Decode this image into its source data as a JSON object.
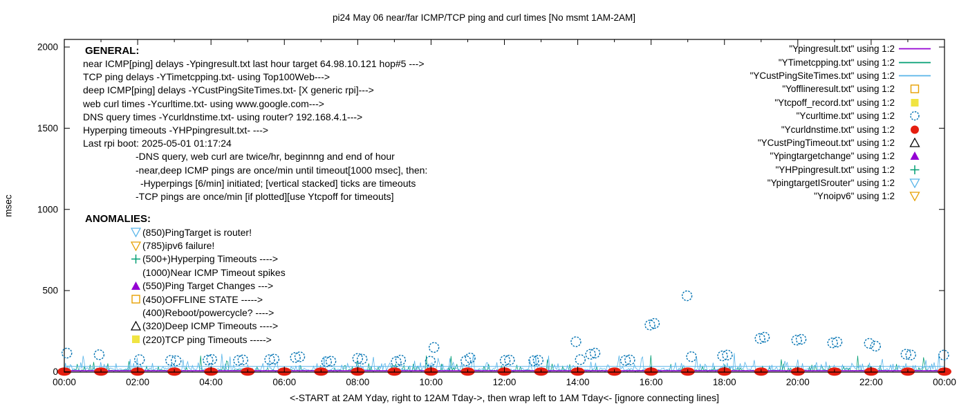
{
  "chart_data": {
    "type": "line",
    "title": "pi24 May 06  near/far ICMP/TCP ping and curl times [No msmt 1AM-2AM]",
    "ylabel": "msec",
    "xlabel": "<-START at 2AM Yday, right to 12AM Tday->, then wrap left to 1AM Tday<- [ignore connecting lines]",
    "ylim": [
      0,
      2000
    ],
    "xlim_hours": [
      0,
      24
    ],
    "y_ticks": [
      0,
      500,
      1000,
      1500,
      2000
    ],
    "x_tick_labels": [
      "00:00",
      "02:00",
      "04:00",
      "06:00",
      "08:00",
      "10:00",
      "12:00",
      "14:00",
      "16:00",
      "18:00",
      "20:00",
      "22:00",
      "00:00"
    ],
    "grid": "off",
    "legend_position": "inside-top-right",
    "noise_seed": 1337,
    "series": [
      {
        "name": "\"Ypingresult.txt\" using 1:2",
        "style": "line",
        "color": "#9400d3",
        "steady_msec": 6
      },
      {
        "name": "\"YTimetcpping.txt\" using 1:2",
        "style": "line",
        "color": "#009e73",
        "noise": {
          "base": [
            2,
            13
          ],
          "spikes": [
            [
              0.09,
              22,
              52
            ],
            [
              0.012,
              55,
              105
            ]
          ]
        }
      },
      {
        "name": "\"YCustPingSiteTimes.txt\" using 1:2",
        "style": "line",
        "color": "#56b4e9",
        "steady_msec": 33,
        "noise": {
          "base": [
            5,
            24
          ],
          "spikes": [
            [
              0.18,
              28,
              60
            ],
            [
              0.035,
              60,
              100
            ],
            [
              0.004,
              100,
              125
            ]
          ]
        }
      },
      {
        "name": "\"Yofflineresult.txt\" using 1:2",
        "style": "open-square",
        "color": "#e69f00",
        "points": []
      },
      {
        "name": "\"Ytcpoff_record.txt\" using 1:2",
        "style": "filled-square",
        "color": "#f0e442",
        "points": []
      },
      {
        "name": "\"Ycurltime.txt\" using 1:2",
        "style": "open-circle",
        "color": "#0072b2",
        "points": [
          [
            0.07,
            115
          ],
          [
            0.95,
            105
          ],
          [
            2.05,
            75
          ],
          [
            2.9,
            70
          ],
          [
            3.05,
            68
          ],
          [
            3.92,
            72
          ],
          [
            4.02,
            76
          ],
          [
            4.75,
            70
          ],
          [
            4.87,
            73
          ],
          [
            5.6,
            75
          ],
          [
            5.72,
            78
          ],
          [
            6.3,
            88
          ],
          [
            6.42,
            92
          ],
          [
            7.15,
            62
          ],
          [
            7.27,
            65
          ],
          [
            8.0,
            82
          ],
          [
            8.12,
            78
          ],
          [
            9.05,
            62
          ],
          [
            9.17,
            72
          ],
          [
            9.98,
            65
          ],
          [
            10.08,
            150
          ],
          [
            10.95,
            68
          ],
          [
            11.07,
            85
          ],
          [
            12.02,
            70
          ],
          [
            12.14,
            72
          ],
          [
            12.8,
            68
          ],
          [
            12.92,
            71
          ],
          [
            13.95,
            185
          ],
          [
            14.07,
            75
          ],
          [
            14.35,
            108
          ],
          [
            14.47,
            115
          ],
          [
            15.3,
            70
          ],
          [
            15.42,
            73
          ],
          [
            15.97,
            288
          ],
          [
            16.09,
            298
          ],
          [
            16.98,
            468
          ],
          [
            17.1,
            93
          ],
          [
            17.95,
            98
          ],
          [
            18.08,
            103
          ],
          [
            18.97,
            205
          ],
          [
            19.09,
            213
          ],
          [
            19.97,
            195
          ],
          [
            20.09,
            200
          ],
          [
            20.95,
            178
          ],
          [
            21.07,
            183
          ],
          [
            21.95,
            175
          ],
          [
            22.12,
            158
          ],
          [
            22.95,
            108
          ],
          [
            23.08,
            104
          ],
          [
            23.98,
            103
          ]
        ]
      },
      {
        "name": "\"Ycurldnstime.txt\" using 1:2",
        "style": "filled-circle",
        "color": "#e51e10",
        "blob": true,
        "points": [
          [
            0,
            1
          ],
          [
            1,
            1
          ],
          [
            2,
            1
          ],
          [
            3,
            1
          ],
          [
            4,
            1
          ],
          [
            5,
            1
          ],
          [
            6,
            1
          ],
          [
            7,
            1
          ],
          [
            8,
            1
          ],
          [
            9,
            1
          ],
          [
            10,
            1
          ],
          [
            11,
            1
          ],
          [
            12,
            1
          ],
          [
            13,
            1
          ],
          [
            14,
            1
          ],
          [
            15,
            1
          ],
          [
            16,
            1
          ],
          [
            17,
            1
          ],
          [
            18,
            1
          ],
          [
            19,
            1
          ],
          [
            20,
            1
          ],
          [
            21,
            1
          ],
          [
            22,
            1
          ],
          [
            23,
            1
          ],
          [
            24,
            1
          ]
        ]
      },
      {
        "name": "\"YCustPingTimeout.txt\" using 1:2",
        "style": "open-triangle-up",
        "color": "#000000",
        "points": []
      },
      {
        "name": "\"Ypingtargetchange\" using 1:2",
        "style": "filled-triangle-up",
        "color": "#9400d3",
        "points": []
      },
      {
        "name": "\"YHPpingresult.txt\" using 1:2",
        "style": "plus",
        "color": "#009e73",
        "points": []
      },
      {
        "name": "\"YpingtargetISrouter\" using 1:2",
        "style": "open-triangle-down",
        "color": "#56b4e9",
        "points": []
      },
      {
        "name": "\"Ynoipv6\" using 1:2",
        "style": "open-triangle-down",
        "color": "#e69f00",
        "points": []
      }
    ]
  },
  "annotations": {
    "general": {
      "heading": "GENERAL:",
      "lines": [
        {
          "text": "near ICMP[ping] delays -Ypingresult.txt last hour target 64.98.10.121 hop#5 --->",
          "indent": 0
        },
        {
          "text": "TCP ping delays -YTimetcpping.txt- using Top100Web--->",
          "indent": 0
        },
        {
          "text": "deep ICMP[ping] delays -YCustPingSiteTimes.txt- [X generic rpi]--->",
          "indent": 0
        },
        {
          "text": "web curl times -Ycurltime.txt- using www.google.com--->",
          "indent": 0
        },
        {
          "text": "DNS query times -Ycurldnstime.txt- using router? 192.168.4.1--->",
          "indent": 0
        },
        {
          "text": "Hyperping timeouts -YHPpingresult.txt- --->",
          "indent": 0
        },
        {
          "text": "Last rpi boot: 2025-05-01 01:17:24",
          "indent": 0
        },
        {
          "text": "-DNS query, web curl are twice/hr, beginnng and end of hour",
          "indent": 76
        },
        {
          "text": "-near,deep ICMP pings are once/min until timeout[1000 msec], then:",
          "indent": 76
        },
        {
          "text": "-Hyperpings [6/min] initiated; [vertical stacked] ticks are timeouts",
          "indent": 83
        },
        {
          "text": "-TCP pings are once/min [if plotted][use Ytcpoff for timeouts]",
          "indent": 76
        }
      ]
    },
    "anomalies": {
      "heading": "ANOMALIES:",
      "items": [
        {
          "marker": "open-triangle-down",
          "color": "#56b4e9",
          "text": "(850)PingTarget is router!"
        },
        {
          "marker": "open-triangle-down",
          "color": "#e69f00",
          "text": "(785)ipv6 failure!"
        },
        {
          "marker": "plus",
          "color": "#009e73",
          "text": "(500+)Hyperping Timeouts ---->"
        },
        {
          "marker": "none",
          "color": "",
          "text": "(1000)Near ICMP Timeout spikes"
        },
        {
          "marker": "filled-triangle-up",
          "color": "#9400d3",
          "text": "(550)Ping Target Changes --->"
        },
        {
          "marker": "open-square",
          "color": "#e69f00",
          "text": "(450)OFFLINE STATE ----->"
        },
        {
          "marker": "none",
          "color": "",
          "text": "(400)Reboot/powercycle? ---->"
        },
        {
          "marker": "open-triangle-up",
          "color": "#000000",
          "text": "(320)Deep ICMP Timeouts ---->"
        },
        {
          "marker": "filled-square",
          "color": "#f0e442",
          "text": "(220)TCP ping Timeouts ----->"
        }
      ]
    }
  }
}
